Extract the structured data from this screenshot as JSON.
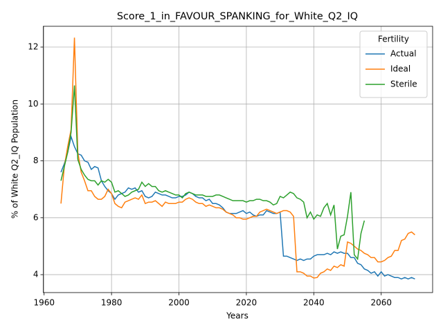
{
  "chart_data": {
    "type": "line",
    "title": "Score_1_in_FAVOUR_SPANKING_for_White_Q2_IQ",
    "xlabel": "Years",
    "ylabel": "% of White Q2_IQ Population",
    "legend_title": "Fertility",
    "legend": "upper right",
    "grid": true,
    "xlim": [
      1959.75,
      2075.25
    ],
    "ylim": [
      3.37,
      12.73
    ],
    "xticks": [
      1960,
      1980,
      2000,
      2020,
      2040,
      2060
    ],
    "yticks": [
      4,
      6,
      8,
      10,
      12
    ],
    "x": [
      1965,
      1966,
      1967,
      1968,
      1969,
      1970,
      1971,
      1972,
      1973,
      1974,
      1975,
      1976,
      1977,
      1978,
      1979,
      1980,
      1981,
      1982,
      1983,
      1984,
      1985,
      1986,
      1987,
      1988,
      1989,
      1990,
      1991,
      1992,
      1993,
      1994,
      1995,
      1996,
      1997,
      1998,
      1999,
      2000,
      2001,
      2002,
      2003,
      2004,
      2005,
      2006,
      2007,
      2008,
      2009,
      2010,
      2011,
      2012,
      2013,
      2014,
      2015,
      2016,
      2017,
      2018,
      2019,
      2020,
      2021,
      2022,
      2023,
      2024,
      2025,
      2026,
      2027,
      2028,
      2029,
      2030,
      2031,
      2032,
      2033,
      2034,
      2035,
      2036,
      2037,
      2038,
      2039,
      2040,
      2041,
      2042,
      2043,
      2044,
      2045,
      2046,
      2047,
      2048,
      2049,
      2050,
      2051,
      2052,
      2053,
      2054,
      2055,
      2056,
      2057,
      2058,
      2059,
      2060,
      2061,
      2062,
      2063,
      2064,
      2065,
      2066,
      2067,
      2068,
      2069,
      2070
    ],
    "series": [
      {
        "name": "Actual",
        "color": "#1f77b4",
        "values": [
          7.6,
          7.9,
          8.3,
          8.85,
          8.5,
          8.25,
          8.2,
          8.0,
          7.95,
          7.7,
          7.8,
          7.75,
          7.3,
          7.1,
          6.95,
          6.85,
          6.65,
          6.8,
          6.85,
          6.9,
          7.05,
          7.0,
          7.05,
          6.9,
          6.95,
          6.75,
          6.7,
          6.75,
          6.9,
          6.85,
          6.8,
          6.8,
          6.75,
          6.7,
          6.7,
          6.75,
          6.75,
          6.8,
          6.9,
          6.85,
          6.75,
          6.7,
          6.7,
          6.6,
          6.65,
          6.5,
          6.5,
          6.45,
          6.35,
          6.2,
          6.15,
          6.15,
          6.15,
          6.2,
          6.25,
          6.15,
          6.2,
          6.1,
          6.05,
          6.1,
          6.1,
          6.25,
          6.2,
          6.15,
          6.15,
          6.2,
          4.65,
          4.65,
          4.6,
          4.55,
          4.5,
          4.55,
          4.5,
          4.55,
          4.55,
          4.65,
          4.7,
          4.7,
          4.7,
          4.75,
          4.7,
          4.8,
          4.75,
          4.8,
          4.75,
          4.75,
          4.6,
          4.6,
          4.4,
          4.35,
          4.2,
          4.15,
          4.05,
          4.1,
          3.95,
          4.1,
          3.95,
          4.0,
          3.95,
          3.9,
          3.9,
          3.85,
          3.9,
          3.85,
          3.9,
          3.85
        ]
      },
      {
        "name": "Ideal",
        "color": "#ff7f0e",
        "values": [
          6.5,
          7.8,
          8.5,
          9.1,
          12.33,
          8.3,
          7.6,
          7.3,
          6.95,
          6.95,
          6.75,
          6.65,
          6.65,
          6.75,
          7.0,
          6.85,
          6.5,
          6.4,
          6.35,
          6.55,
          6.6,
          6.65,
          6.7,
          6.65,
          6.8,
          6.5,
          6.55,
          6.55,
          6.6,
          6.5,
          6.4,
          6.55,
          6.5,
          6.5,
          6.5,
          6.55,
          6.55,
          6.65,
          6.7,
          6.65,
          6.55,
          6.5,
          6.5,
          6.4,
          6.45,
          6.4,
          6.35,
          6.35,
          6.3,
          6.2,
          6.15,
          6.1,
          6.0,
          6.0,
          5.95,
          5.95,
          6.0,
          6.05,
          6.05,
          6.2,
          6.25,
          6.3,
          6.25,
          6.2,
          6.15,
          6.2,
          6.25,
          6.25,
          6.2,
          6.05,
          4.1,
          4.1,
          4.05,
          3.95,
          3.95,
          3.88,
          3.9,
          4.05,
          4.1,
          4.2,
          4.15,
          4.3,
          4.25,
          4.35,
          4.3,
          5.15,
          5.1,
          5.0,
          4.9,
          4.85,
          4.75,
          4.7,
          4.6,
          4.6,
          4.45,
          4.45,
          4.5,
          4.6,
          4.65,
          4.85,
          4.85,
          5.2,
          5.25,
          5.45,
          5.5,
          5.4
        ]
      },
      {
        "name": "Sterile",
        "color": "#2ca02c",
        "values": [
          7.3,
          7.8,
          8.3,
          9.0,
          10.65,
          8.05,
          7.7,
          7.5,
          7.35,
          7.3,
          7.3,
          7.15,
          7.3,
          7.25,
          7.35,
          7.25,
          6.9,
          6.95,
          6.85,
          6.75,
          6.8,
          6.9,
          6.95,
          7.0,
          7.25,
          7.1,
          7.2,
          7.1,
          7.1,
          6.95,
          6.9,
          6.95,
          6.9,
          6.85,
          6.8,
          6.8,
          6.7,
          6.85,
          6.9,
          6.85,
          6.8,
          6.8,
          6.8,
          6.75,
          6.75,
          6.75,
          6.8,
          6.8,
          6.75,
          6.7,
          6.65,
          6.6,
          6.6,
          6.6,
          6.6,
          6.55,
          6.6,
          6.6,
          6.65,
          6.65,
          6.6,
          6.6,
          6.55,
          6.45,
          6.5,
          6.75,
          6.7,
          6.8,
          6.9,
          6.85,
          6.7,
          6.65,
          6.55,
          6.0,
          6.2,
          5.95,
          6.1,
          6.05,
          6.35,
          6.5,
          6.1,
          6.45,
          4.9,
          5.35,
          5.4,
          6.05,
          6.9,
          4.7,
          4.55,
          5.45,
          5.9,
          null,
          null,
          null,
          null,
          null,
          null,
          null,
          null,
          null,
          null,
          null,
          null,
          null,
          null,
          null
        ]
      }
    ]
  }
}
